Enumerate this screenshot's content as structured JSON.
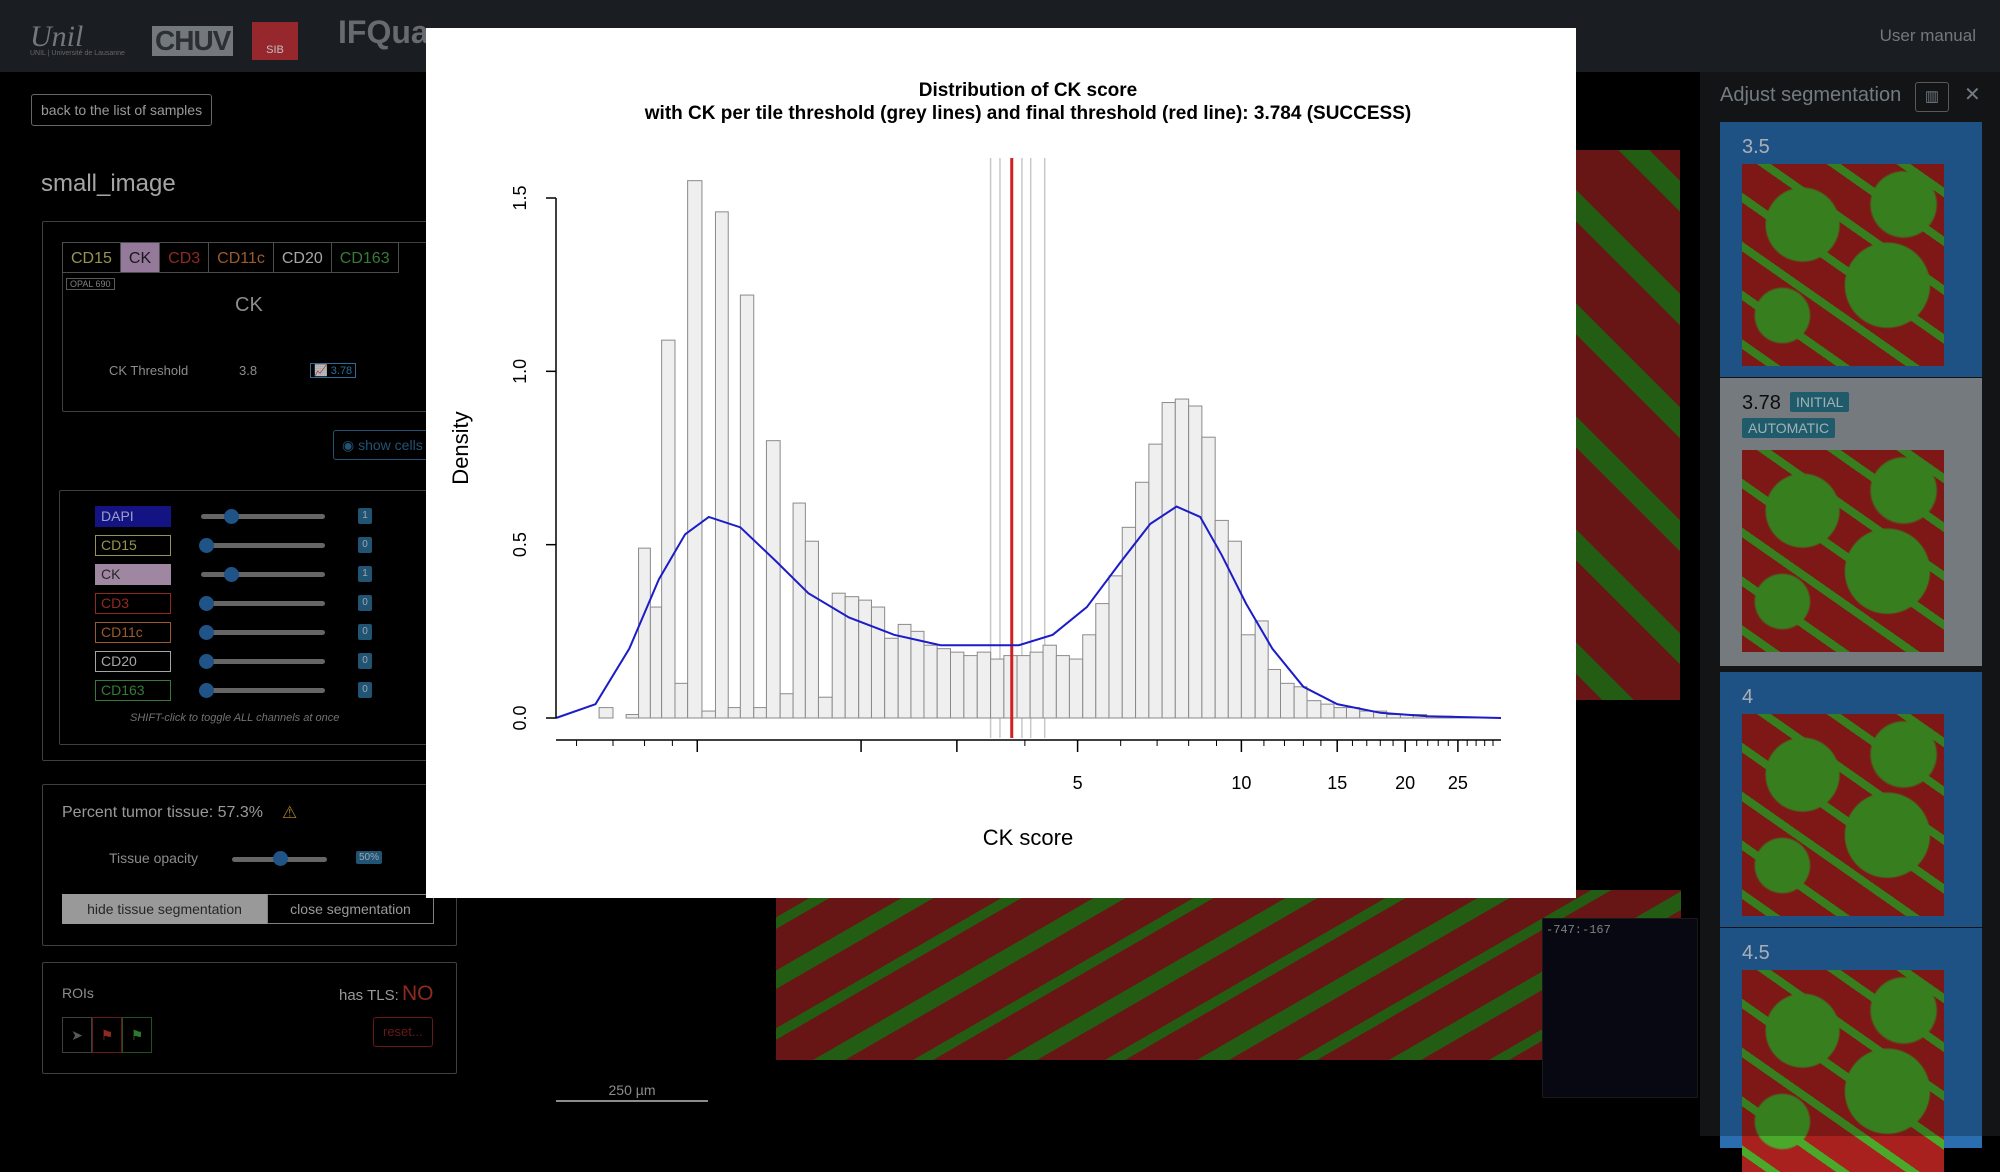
{
  "header": {
    "unil_logo": "Unil",
    "unil_sub": "UNIL | Université de Lausanne",
    "chuv_logo": "CHUV",
    "sib_logo": "SIB",
    "app_title": "IFQua",
    "user_manual": "User manual"
  },
  "left": {
    "back_button": "back to the list of samples",
    "sample_name": "small_image",
    "tabs": [
      {
        "label": "CD15",
        "color": "#c7c56a"
      },
      {
        "label": "CK",
        "color": "#222222"
      },
      {
        "label": "CD3",
        "color": "#c0392b"
      },
      {
        "label": "CD11c",
        "color": "#d07a3a"
      },
      {
        "label": "CD20",
        "color": "#dddddd"
      },
      {
        "label": "CD163",
        "color": "#4aa34a"
      }
    ],
    "opal_tag": "OPAL 690",
    "channel_title": "CK",
    "threshold_label": "CK Threshold",
    "threshold_value": "3.8",
    "threshold_badge": "3.78",
    "show_cells": "show cells",
    "channels": [
      {
        "label": "DAPI",
        "value": "1",
        "level": 0.25,
        "bg": "#1a1ab0",
        "fg": "#cfd5ff",
        "border": "#1a1ab0"
      },
      {
        "label": "CD15",
        "value": "0",
        "level": 0.0,
        "bg": "transparent",
        "fg": "#c7c56a",
        "border": "#c7c56a"
      },
      {
        "label": "CK",
        "value": "1",
        "level": 0.25,
        "bg": "#d4b4d8",
        "fg": "#333333",
        "border": "#d4b4d8"
      },
      {
        "label": "CD3",
        "value": "0",
        "level": 0.0,
        "bg": "transparent",
        "fg": "#c0392b",
        "border": "#c0392b"
      },
      {
        "label": "CD11c",
        "value": "0",
        "level": 0.0,
        "bg": "transparent",
        "fg": "#d07a3a",
        "border": "#d07a3a"
      },
      {
        "label": "CD20",
        "value": "0",
        "level": 0.0,
        "bg": "transparent",
        "fg": "#dddddd",
        "border": "#dddddd"
      },
      {
        "label": "CD163",
        "value": "0",
        "level": 0.0,
        "bg": "transparent",
        "fg": "#4aa34a",
        "border": "#4aa34a"
      }
    ],
    "hint": "SHIFT-click to toggle ALL channels at once",
    "tumor_label": "Percent tumor tissue: 57.3%",
    "opacity_label": "Tissue opacity",
    "opacity_value": "50%",
    "opacity_level": 0.5,
    "hide_seg": "hide tissue segmentation",
    "close_seg": "close segmentation",
    "rois_label": "ROIs",
    "tls_label": "has TLS:",
    "tls_value": "NO",
    "reset": "reset..."
  },
  "viewer": {
    "coord": "-747:-167",
    "scale": "250 µm"
  },
  "right": {
    "title": "Adjust segmentation",
    "cards": [
      {
        "value": "3.5",
        "selected": false
      },
      {
        "value": "3.78",
        "selected": true,
        "badge1": "INITIAL",
        "badge2": "AUTOMATIC"
      },
      {
        "value": "4",
        "selected": false
      },
      {
        "value": "4.5",
        "selected": false
      }
    ]
  },
  "chart_data": {
    "type": "bar",
    "title": "Distribution of CK score",
    "subtitle": "with CK per tile threshold (grey lines) and final threshold (red line): 3.784 (SUCCESS)",
    "xlabel": "CK score",
    "ylabel": "Density",
    "ylim": [
      0,
      1.5
    ],
    "yticks": [
      "0.0",
      "0.5",
      "1.0",
      "1.5"
    ],
    "xticks": [
      "5",
      "10",
      "15",
      "20",
      "25"
    ],
    "xscale": "log",
    "xlim": [
      0.55,
      30
    ],
    "bins": [
      [
        0.62,
        0.0
      ],
      [
        0.66,
        0.03
      ],
      [
        0.7,
        0.0
      ],
      [
        0.74,
        0.01
      ],
      [
        0.78,
        0.49
      ],
      [
        0.82,
        0.32
      ],
      [
        0.86,
        1.09
      ],
      [
        0.91,
        0.1
      ],
      [
        0.96,
        1.55
      ],
      [
        1.02,
        0.02
      ],
      [
        1.08,
        1.46
      ],
      [
        1.14,
        0.03
      ],
      [
        1.2,
        1.22
      ],
      [
        1.27,
        0.03
      ],
      [
        1.34,
        0.8
      ],
      [
        1.42,
        0.07
      ],
      [
        1.5,
        0.62
      ],
      [
        1.58,
        0.51
      ],
      [
        1.67,
        0.06
      ],
      [
        1.77,
        0.36
      ],
      [
        1.87,
        0.35
      ],
      [
        1.98,
        0.34
      ],
      [
        2.09,
        0.32
      ],
      [
        2.21,
        0.23
      ],
      [
        2.34,
        0.27
      ],
      [
        2.47,
        0.25
      ],
      [
        2.61,
        0.21
      ],
      [
        2.76,
        0.2
      ],
      [
        2.92,
        0.19
      ],
      [
        3.09,
        0.18
      ],
      [
        3.27,
        0.19
      ],
      [
        3.46,
        0.17
      ],
      [
        3.66,
        0.18
      ],
      [
        3.87,
        0.18
      ],
      [
        4.09,
        0.19
      ],
      [
        4.32,
        0.21
      ],
      [
        4.57,
        0.18
      ],
      [
        4.83,
        0.17
      ],
      [
        5.11,
        0.24
      ],
      [
        5.4,
        0.33
      ],
      [
        5.71,
        0.41
      ],
      [
        6.04,
        0.55
      ],
      [
        6.39,
        0.68
      ],
      [
        6.76,
        0.79
      ],
      [
        7.15,
        0.91
      ],
      [
        7.56,
        0.92
      ],
      [
        8.0,
        0.9
      ],
      [
        8.46,
        0.81
      ],
      [
        8.95,
        0.57
      ],
      [
        9.46,
        0.51
      ],
      [
        10.0,
        0.24
      ],
      [
        10.6,
        0.28
      ],
      [
        11.2,
        0.14
      ],
      [
        11.8,
        0.1
      ],
      [
        12.5,
        0.09
      ],
      [
        13.2,
        0.05
      ],
      [
        14.0,
        0.04
      ],
      [
        14.8,
        0.03
      ],
      [
        15.6,
        0.03
      ],
      [
        16.5,
        0.02
      ],
      [
        17.5,
        0.02
      ],
      [
        18.5,
        0.01
      ],
      [
        19.6,
        0.01
      ],
      [
        20.7,
        0.01
      ],
      [
        21.9,
        0.005
      ],
      [
        23.1,
        0.005
      ],
      [
        24.5,
        0.003
      ],
      [
        25.9,
        0.002
      ],
      [
        27.4,
        0.001
      ]
    ],
    "density": [
      [
        0.55,
        0.0
      ],
      [
        0.65,
        0.04
      ],
      [
        0.75,
        0.2
      ],
      [
        0.85,
        0.4
      ],
      [
        0.95,
        0.53
      ],
      [
        1.05,
        0.58
      ],
      [
        1.2,
        0.55
      ],
      [
        1.4,
        0.45
      ],
      [
        1.6,
        0.36
      ],
      [
        1.9,
        0.29
      ],
      [
        2.3,
        0.24
      ],
      [
        2.8,
        0.21
      ],
      [
        3.4,
        0.21
      ],
      [
        3.9,
        0.21
      ],
      [
        4.5,
        0.24
      ],
      [
        5.2,
        0.32
      ],
      [
        6.0,
        0.45
      ],
      [
        6.8,
        0.56
      ],
      [
        7.6,
        0.61
      ],
      [
        8.4,
        0.58
      ],
      [
        9.2,
        0.47
      ],
      [
        10.2,
        0.33
      ],
      [
        11.4,
        0.2
      ],
      [
        13,
        0.09
      ],
      [
        15,
        0.04
      ],
      [
        18,
        0.015
      ],
      [
        22,
        0.005
      ],
      [
        30,
        0.0
      ]
    ],
    "grey_lines": [
      3.46,
      3.6,
      3.95,
      4.1,
      4.35
    ],
    "red_line": 3.784
  }
}
